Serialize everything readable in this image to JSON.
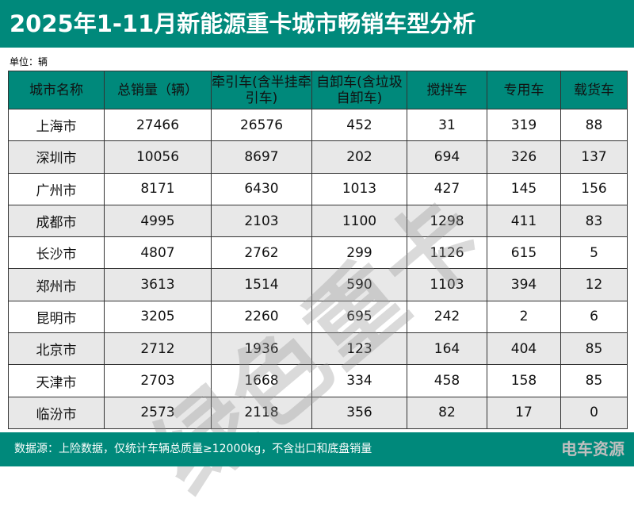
{
  "title": "2025年1-11月新能源重卡城市畅销车型分析",
  "unit": "单位：辆",
  "headers": [
    "城市名称",
    "总销量（辆）",
    "牵引车(含半挂牵引车)",
    "自卸车(含垃圾自卸车)",
    "搅拌车",
    "专用车",
    "载货车"
  ],
  "rows": [
    [
      "上海市",
      "27466",
      "26576",
      "452",
      "31",
      "319",
      "88"
    ],
    [
      "深圳市",
      "10056",
      "8697",
      "202",
      "694",
      "326",
      "137"
    ],
    [
      "广州市",
      "8171",
      "6430",
      "1013",
      "427",
      "145",
      "156"
    ],
    [
      "成都市",
      "4995",
      "2103",
      "1100",
      "1298",
      "411",
      "83"
    ],
    [
      "长沙市",
      "4807",
      "2762",
      "299",
      "1126",
      "615",
      "5"
    ],
    [
      "郑州市",
      "3613",
      "1514",
      "590",
      "1103",
      "394",
      "12"
    ],
    [
      "昆明市",
      "3205",
      "2260",
      "695",
      "242",
      "2",
      "6"
    ],
    [
      "北京市",
      "2712",
      "1936",
      "123",
      "164",
      "404",
      "85"
    ],
    [
      "天津市",
      "2703",
      "1668",
      "334",
      "458",
      "158",
      "85"
    ],
    [
      "临汾市",
      "2573",
      "2118",
      "356",
      "82",
      "17",
      "0"
    ]
  ],
  "watermark": "绿色重卡",
  "footer": "数据源：上险数据，仅统计车辆总质量≥12000kg，不含出口和底盘销量",
  "logo": "电车资源",
  "colors": {
    "brand": "#00897b",
    "stripe": "#e8e8e8"
  }
}
